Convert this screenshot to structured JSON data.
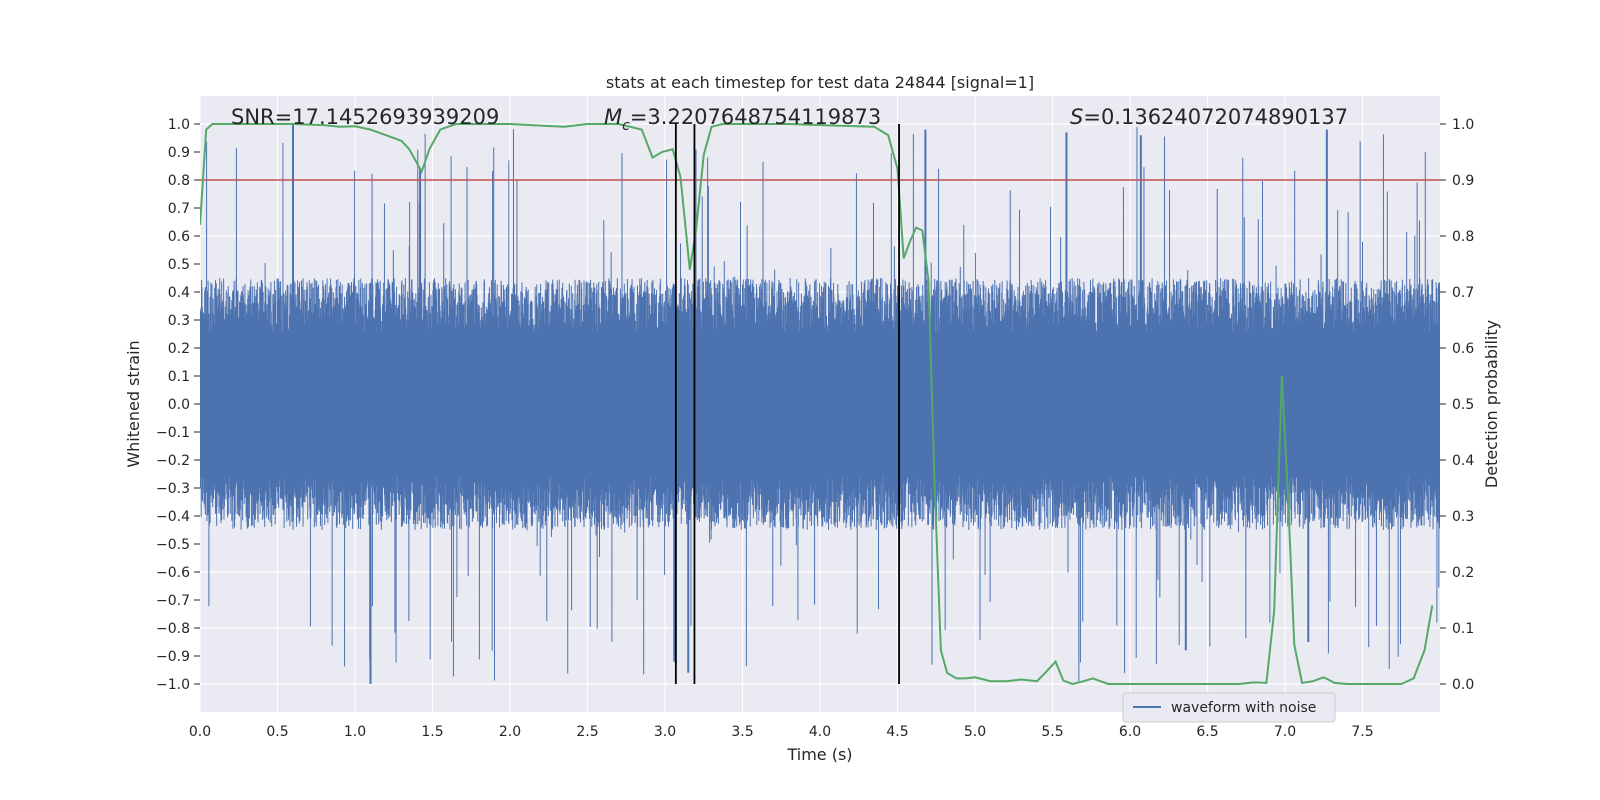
{
  "chart_data": {
    "type": "line",
    "title": "stats at each timestep for test data 24844 [signal=1]",
    "xlabel": "Time (s)",
    "ylabel": "Whitened strain",
    "ylabel_right": "Detection probability",
    "xlim": [
      0.0,
      8.0
    ],
    "ylim": [
      -1.1,
      1.1
    ],
    "ylim_right": [
      -0.05,
      1.05
    ],
    "x_ticks": [
      0.0,
      0.5,
      1.0,
      1.5,
      2.0,
      2.5,
      3.0,
      3.5,
      4.0,
      4.5,
      5.0,
      5.5,
      6.0,
      6.5,
      7.0,
      7.5
    ],
    "x_tick_labels": [
      "0.0",
      "0.5",
      "1.0",
      "1.5",
      "2.0",
      "2.5",
      "3.0",
      "3.5",
      "4.0",
      "4.5",
      "5.0",
      "5.5",
      "6.0",
      "6.5",
      "7.0",
      "7.5"
    ],
    "y_ticks": [
      1.0,
      0.9,
      0.8,
      0.7,
      0.6,
      0.5,
      0.4,
      0.3,
      0.2,
      0.1,
      0.0,
      -0.1,
      -0.2,
      -0.3,
      -0.4,
      -0.5,
      -0.6,
      -0.7,
      -0.8,
      -0.9,
      -1.0
    ],
    "y_tick_labels": [
      "1.0",
      "0.9",
      "0.8",
      "0.7",
      "0.6",
      "0.5",
      "0.4",
      "0.3",
      "0.2",
      "0.1",
      "0.0",
      "−0.1",
      "−0.2",
      "−0.3",
      "−0.4",
      "−0.5",
      "−0.6",
      "−0.7",
      "−0.8",
      "−0.9",
      "−1.0"
    ],
    "y_right_ticks": [
      1.0,
      0.9,
      0.8,
      0.7,
      0.6,
      0.5,
      0.4,
      0.3,
      0.2,
      0.1,
      0.0
    ],
    "y_right_tick_labels": [
      "1.0",
      "0.9",
      "0.8",
      "0.7",
      "0.6",
      "0.5",
      "0.4",
      "0.3",
      "0.2",
      "0.1",
      "0.0"
    ],
    "annotations": {
      "snr": "SNR=17.1452693939209",
      "mc_symbol": "M",
      "mc_subscript": "c",
      "mc_value": "=3.2207648754119873",
      "s_symbol": "S",
      "s_value": "=0.13624072074890137"
    },
    "threshold": {
      "value": 0.9,
      "axis": "right",
      "color": "#c44e52"
    },
    "vertical_lines": [
      3.07,
      3.19,
      4.51
    ],
    "legend": {
      "label": "waveform with noise",
      "location": "lower-right"
    },
    "series": [
      {
        "name": "waveform with noise",
        "axis": "left",
        "color": "#4c72b0",
        "kind": "noise",
        "envelope_hint": {
          "typical_upper": 0.45,
          "typical_lower": -0.45,
          "peak_max": 1.0,
          "peak_min": -1.0
        },
        "notable_spikes": [
          {
            "x": 0.6,
            "y": 1.0
          },
          {
            "x": 1.1,
            "y": -1.0
          },
          {
            "x": 1.42,
            "y": 0.84
          },
          {
            "x": 3.06,
            "y": -0.92
          },
          {
            "x": 3.15,
            "y": -0.96
          },
          {
            "x": 4.68,
            "y": 0.98
          },
          {
            "x": 5.59,
            "y": 0.97
          },
          {
            "x": 6.36,
            "y": -0.88
          },
          {
            "x": 7.27,
            "y": 0.98
          },
          {
            "x": 6.07,
            "y": 0.96
          },
          {
            "x": 7.15,
            "y": -0.85
          }
        ]
      },
      {
        "name": "detection probability",
        "axis": "right",
        "color": "#55a868",
        "x": [
          0.0,
          0.04,
          0.08,
          0.12,
          0.2,
          0.4,
          0.6,
          0.8,
          0.9,
          1.0,
          1.1,
          1.2,
          1.3,
          1.35,
          1.4,
          1.43,
          1.48,
          1.55,
          1.65,
          1.8,
          2.0,
          2.2,
          2.35,
          2.5,
          2.7,
          2.85,
          2.92,
          2.98,
          3.05,
          3.1,
          3.16,
          3.2,
          3.25,
          3.3,
          3.37,
          3.5,
          3.8,
          4.1,
          4.35,
          4.44,
          4.5,
          4.54,
          4.58,
          4.62,
          4.66,
          4.7,
          4.74,
          4.78,
          4.82,
          4.88,
          4.94,
          5.0,
          5.1,
          5.2,
          5.3,
          5.4,
          5.46,
          5.52,
          5.57,
          5.63,
          5.7,
          5.76,
          5.86,
          5.95,
          6.1,
          6.3,
          6.5,
          6.7,
          6.8,
          6.88,
          6.93,
          6.98,
          7.02,
          7.06,
          7.11,
          7.18,
          7.25,
          7.32,
          7.4,
          7.55,
          7.75,
          7.83,
          7.9,
          7.95
        ],
        "values": [
          0.82,
          0.99,
          1.0,
          1.0,
          1.0,
          1.0,
          1.0,
          0.998,
          0.995,
          0.996,
          0.99,
          0.98,
          0.97,
          0.955,
          0.93,
          0.915,
          0.955,
          0.99,
          1.0,
          1.0,
          1.0,
          0.997,
          0.995,
          1.0,
          1.0,
          0.99,
          0.94,
          0.95,
          0.955,
          0.905,
          0.74,
          0.81,
          0.945,
          0.995,
          1.0,
          1.0,
          1.0,
          0.997,
          0.995,
          0.98,
          0.92,
          0.76,
          0.79,
          0.815,
          0.81,
          0.72,
          0.35,
          0.06,
          0.02,
          0.01,
          0.01,
          0.012,
          0.005,
          0.005,
          0.008,
          0.005,
          0.022,
          0.04,
          0.006,
          0.0,
          0.005,
          0.01,
          0.0,
          0.0,
          0.0,
          0.0,
          0.0,
          0.0,
          0.003,
          0.002,
          0.13,
          0.55,
          0.33,
          0.07,
          0.002,
          0.005,
          0.012,
          0.002,
          0.0,
          0.0,
          0.0,
          0.01,
          0.06,
          0.14
        ]
      }
    ]
  }
}
